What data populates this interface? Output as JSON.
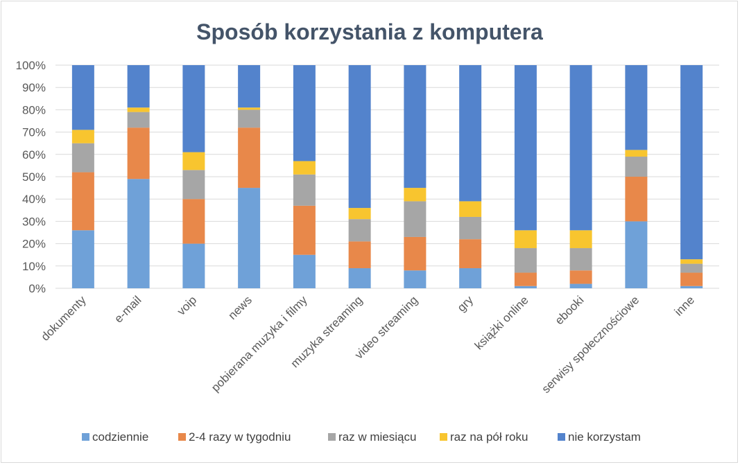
{
  "chart_data": {
    "type": "bar",
    "stacked": true,
    "percent": true,
    "title": "Sposób korzystania z komputera",
    "xlabel": "",
    "ylabel": "",
    "ylim": [
      0,
      100
    ],
    "yticks": [
      "0%",
      "10%",
      "20%",
      "30%",
      "40%",
      "50%",
      "60%",
      "70%",
      "80%",
      "90%",
      "100%"
    ],
    "grid": true,
    "legend_position": "bottom",
    "categories": [
      "dokumenty",
      "e-mail",
      "voip",
      "news",
      "pobierana muzyka i filmy",
      "muzyka streaming",
      "video streaming",
      "gry",
      "książki online",
      "ebooki",
      "serwisy społecznościowe",
      "inne"
    ],
    "series": [
      {
        "name": "codziennie",
        "color": "#6fa1d8",
        "values": [
          26,
          49,
          20,
          45,
          15,
          9,
          8,
          9,
          1,
          2,
          30,
          1
        ]
      },
      {
        "name": "2-4 razy w tygodniu",
        "color": "#e8884a",
        "values": [
          26,
          23,
          20,
          27,
          22,
          12,
          15,
          13,
          6,
          6,
          20,
          6
        ]
      },
      {
        "name": "raz w miesiącu",
        "color": "#a6a6a6",
        "values": [
          13,
          7,
          13,
          8,
          14,
          10,
          16,
          10,
          11,
          10,
          9,
          4
        ]
      },
      {
        "name": "raz na pół roku",
        "color": "#f8c52f",
        "values": [
          6,
          2,
          8,
          1,
          6,
          5,
          6,
          7,
          8,
          8,
          3,
          2
        ]
      },
      {
        "name": "nie korzystam",
        "color": "#5383cc",
        "values": [
          29,
          19,
          39,
          19,
          43,
          64,
          55,
          61,
          74,
          74,
          38,
          87
        ]
      }
    ]
  }
}
